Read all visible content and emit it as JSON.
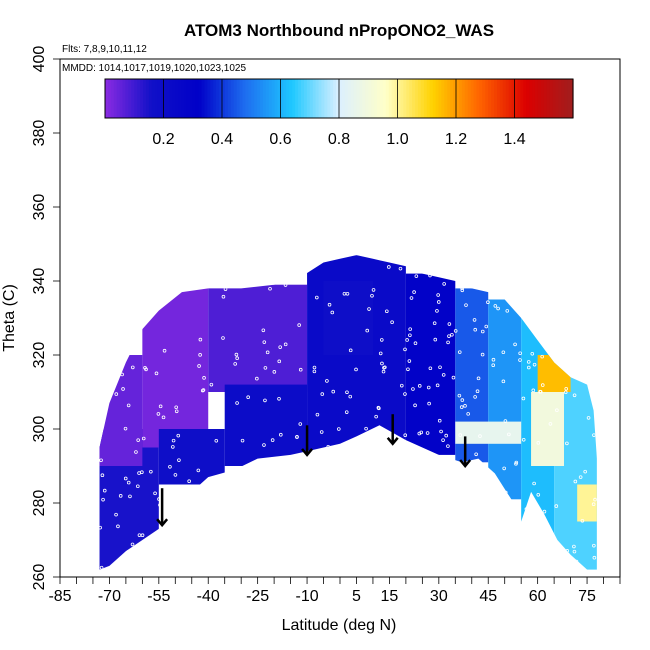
{
  "chart_data": {
    "type": "heatmap",
    "title": "ATOM3 Northbound nPropONO2_WAS",
    "flights_note": "Flts: 7,8,9,10,11,12",
    "dates_note": "MMDD: 1014,1017,1019,1020,1023,1025",
    "xlabel": "Latitude (deg N)",
    "ylabel": "Theta (C)",
    "xlim": [
      -85,
      85
    ],
    "ylim": [
      260,
      400
    ],
    "x_ticks": [
      -85,
      -70,
      -55,
      -40,
      -25,
      -10,
      5,
      15,
      30,
      45,
      60,
      75
    ],
    "y_ticks": [
      260,
      280,
      300,
      320,
      340,
      360,
      380,
      400
    ],
    "colorbar": {
      "range": [
        0,
        1.6
      ],
      "ticks": [
        0.2,
        0.4,
        0.6,
        0.8,
        1.0,
        1.2,
        1.4
      ],
      "tick_labels": [
        "0.2",
        "0.4",
        "0.6",
        "0.8",
        "1.0",
        "1.2",
        "1.4"
      ],
      "colors": [
        "#8b2be2",
        "#1010c8",
        "#0000c8",
        "#1e6ef0",
        "#1ec8ff",
        "#dcf0ff",
        "#ffffc8",
        "#ffd200",
        "#ff6400",
        "#dc0000",
        "#a01e1e"
      ]
    },
    "upper_boundary": [
      [
        -73,
        295
      ],
      [
        -70,
        307
      ],
      [
        -65,
        318
      ],
      [
        -60,
        327
      ],
      [
        -55,
        332
      ],
      [
        -48,
        337
      ],
      [
        -40,
        338
      ],
      [
        -30,
        338
      ],
      [
        -20,
        339
      ],
      [
        -12,
        341
      ],
      [
        -5,
        345
      ],
      [
        0,
        346
      ],
      [
        5,
        347
      ],
      [
        10,
        346
      ],
      [
        15,
        345
      ],
      [
        20,
        344
      ],
      [
        25,
        342
      ],
      [
        30,
        341
      ],
      [
        35,
        340
      ],
      [
        40,
        338
      ],
      [
        45,
        337
      ],
      [
        50,
        335
      ],
      [
        55,
        330
      ],
      [
        60,
        324
      ],
      [
        65,
        318
      ],
      [
        70,
        314
      ],
      [
        75,
        312
      ],
      [
        77,
        305
      ],
      [
        78,
        292
      ],
      [
        78,
        260
      ]
    ],
    "lower_boundary": [
      [
        -73,
        262
      ],
      [
        -70,
        263
      ],
      [
        -65,
        267
      ],
      [
        -60,
        270
      ],
      [
        -55,
        273
      ],
      [
        -45,
        283
      ],
      [
        -40,
        287
      ],
      [
        -32,
        289
      ],
      [
        -25,
        292
      ],
      [
        -15,
        293
      ],
      [
        -10,
        294
      ],
      [
        0,
        296
      ],
      [
        5,
        298
      ],
      [
        12,
        301
      ],
      [
        20,
        297
      ],
      [
        30,
        293
      ],
      [
        37,
        291
      ],
      [
        42,
        292
      ],
      [
        47,
        288
      ],
      [
        52,
        281
      ],
      [
        55,
        275
      ],
      [
        58,
        283
      ],
      [
        62,
        277
      ],
      [
        66,
        270
      ],
      [
        70,
        266
      ],
      [
        75,
        262
      ],
      [
        78,
        260
      ]
    ],
    "regions": [
      {
        "x0": -73,
        "x1": -55,
        "y0": 262,
        "y1": 300,
        "value": 0.15
      },
      {
        "x0": -73,
        "x1": -60,
        "y0": 290,
        "y1": 320,
        "value": 0.05
      },
      {
        "x0": -60,
        "x1": -40,
        "y0": 295,
        "y1": 338,
        "value": 0.03
      },
      {
        "x0": -55,
        "x1": -35,
        "y0": 285,
        "y1": 300,
        "value": 0.18
      },
      {
        "x0": -40,
        "x1": -10,
        "y0": 310,
        "y1": 339,
        "value": 0.08
      },
      {
        "x0": -35,
        "x1": -10,
        "y0": 290,
        "y1": 312,
        "value": 0.2
      },
      {
        "x0": -10,
        "x1": 20,
        "y0": 294,
        "y1": 347,
        "value": 0.22
      },
      {
        "x0": 20,
        "x1": 35,
        "y0": 293,
        "y1": 342,
        "value": 0.3
      },
      {
        "x0": 35,
        "x1": 45,
        "y0": 291,
        "y1": 338,
        "value": 0.45
      },
      {
        "x0": 45,
        "x1": 55,
        "y0": 281,
        "y1": 335,
        "value": 0.55
      },
      {
        "x0": 55,
        "x1": 65,
        "y0": 270,
        "y1": 330,
        "value": 0.62
      },
      {
        "x0": 65,
        "x1": 78,
        "y0": 262,
        "y1": 318,
        "value": 0.68
      },
      {
        "x0": 58,
        "x1": 68,
        "y0": 290,
        "y1": 310,
        "value": 0.9
      },
      {
        "x0": 60,
        "x1": 70,
        "y0": 310,
        "y1": 320,
        "value": 1.15
      },
      {
        "x0": 72,
        "x1": 78,
        "y0": 275,
        "y1": 285,
        "value": 1.0
      },
      {
        "x0": 35,
        "x1": 55,
        "y0": 296,
        "y1": 302,
        "value": 0.85
      },
      {
        "x0": -5,
        "x1": 10,
        "y0": 320,
        "y1": 340,
        "value": 0.18
      }
    ],
    "arrows": [
      {
        "lat": -54,
        "theta_top": 284,
        "theta_bottom": 274
      },
      {
        "lat": -10,
        "theta_top": 301,
        "theta_bottom": 293
      },
      {
        "lat": 16,
        "theta_top": 304,
        "theta_bottom": 296
      },
      {
        "lat": 38,
        "theta_top": 298,
        "theta_bottom": 290
      }
    ]
  }
}
